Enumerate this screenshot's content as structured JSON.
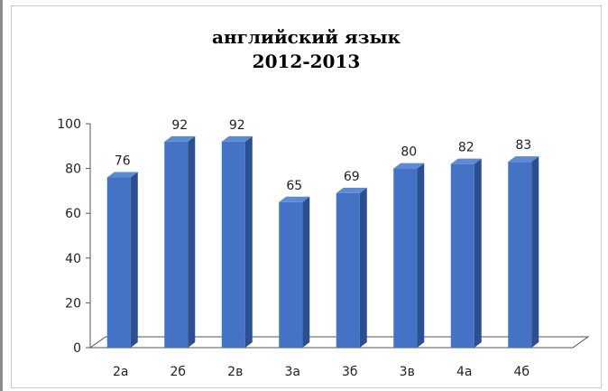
{
  "chart_data": {
    "type": "bar",
    "title": "английский язык",
    "subtitle": "2012-2013",
    "categories": [
      "2а",
      "2б",
      "2в",
      "3а",
      "3б",
      "3в",
      "4а",
      "4б"
    ],
    "values": [
      76,
      92,
      92,
      65,
      69,
      80,
      82,
      83
    ],
    "data_labels": [
      "76",
      "92",
      "92",
      "65",
      "69",
      "80",
      "82",
      "83"
    ],
    "y_ticks": [
      "0",
      "20",
      "40",
      "60",
      "80",
      "100"
    ],
    "ylim": [
      0,
      100
    ],
    "legend": "none",
    "grid": false,
    "bar_color": "#4472c4",
    "bar_side_color": "#2b4f8f",
    "bar_top_color": "#5b8ad6"
  }
}
